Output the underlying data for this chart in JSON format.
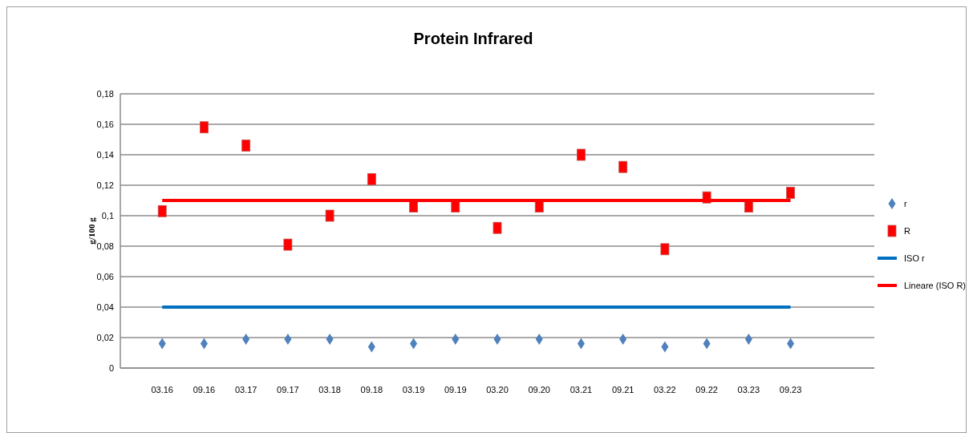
{
  "chart_data": {
    "type": "scatter",
    "title": "Protein Infrared",
    "ylabel": "g/100 g",
    "categories": [
      "03.16",
      "09.16",
      "03.17",
      "09.17",
      "03.18",
      "09.18",
      "03.19",
      "09.19",
      "03.20",
      "09.20",
      "03.21",
      "09.21",
      "03.22",
      "09.22",
      "03.23",
      "09.23"
    ],
    "series": [
      {
        "name": "r",
        "color": "#4f81bd",
        "marker": "diamond",
        "values": [
          0.016,
          0.016,
          0.019,
          0.019,
          0.019,
          0.014,
          0.016,
          0.019,
          0.019,
          0.019,
          0.016,
          0.019,
          0.014,
          0.016,
          0.019,
          0.016
        ]
      },
      {
        "name": "R",
        "color": "#ff0000",
        "marker": "square",
        "values": [
          0.103,
          0.158,
          0.146,
          0.081,
          0.1,
          0.124,
          0.106,
          0.106,
          0.092,
          0.106,
          0.14,
          0.132,
          0.078,
          0.112,
          0.106,
          0.115
        ]
      },
      {
        "name": "ISO  r",
        "type": "line",
        "color": "#0070c0",
        "marker": "none",
        "values": [
          0.04,
          0.04,
          0.04,
          0.04,
          0.04,
          0.04,
          0.04,
          0.04,
          0.04,
          0.04,
          0.04,
          0.04,
          0.04,
          0.04,
          0.04,
          0.04
        ]
      },
      {
        "name": "Lineare (ISO R)",
        "type": "line",
        "color": "#ff0000",
        "marker": "none",
        "values": [
          0.11,
          0.11,
          0.11,
          0.11,
          0.11,
          0.11,
          0.11,
          0.11,
          0.11,
          0.11,
          0.11,
          0.11,
          0.11,
          0.11,
          0.11,
          0.11
        ]
      }
    ],
    "ylim": [
      0,
      0.18
    ],
    "yticks": [
      0,
      {
        "value": 0.02,
        "label": "0,02"
      },
      {
        "value": 0.04,
        "label": "0,04"
      },
      {
        "value": 0.06,
        "label": "0,06"
      },
      {
        "value": 0.08,
        "label": "0,08"
      },
      {
        "value": 0.1,
        "label": "0,1"
      },
      {
        "value": 0.12,
        "label": "0,12"
      },
      {
        "value": 0.14,
        "label": "0,14"
      },
      {
        "value": 0.16,
        "label": "0,16"
      },
      {
        "value": 0.18,
        "label": "0,18"
      }
    ],
    "grid": "y",
    "legend": "right"
  }
}
